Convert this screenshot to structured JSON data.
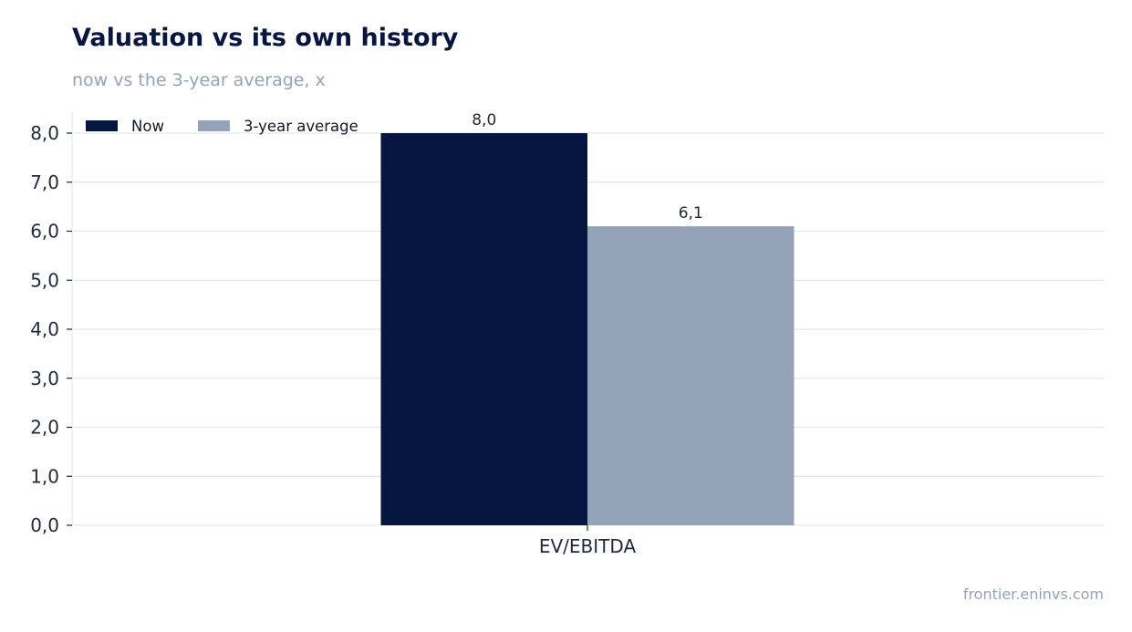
{
  "header": {
    "title": "Valuation vs its own history",
    "subtitle": "now vs the 3-year average, x"
  },
  "footer": {
    "source": "frontier.eninvs.com"
  },
  "colors": {
    "now": "#061641",
    "avg": "#94a3b8",
    "grid": "#e2e8f0",
    "text": "#1e293b"
  },
  "chart_data": {
    "type": "bar",
    "categories": [
      "EV/EBITDA"
    ],
    "series": [
      {
        "name": "Now",
        "values": [
          8.0
        ],
        "labels": [
          "8,0"
        ]
      },
      {
        "name": "3-year average",
        "values": [
          6.1
        ],
        "labels": [
          "6,1"
        ]
      }
    ],
    "ylim": [
      0,
      8.4
    ],
    "yticks": [
      0,
      1,
      2,
      3,
      4,
      5,
      6,
      7,
      8
    ],
    "ytick_labels": [
      "0,0",
      "1,0",
      "2,0",
      "3,0",
      "4,0",
      "5,0",
      "6,0",
      "7,0",
      "8,0"
    ],
    "grid": true,
    "legend_position": "top-left"
  }
}
